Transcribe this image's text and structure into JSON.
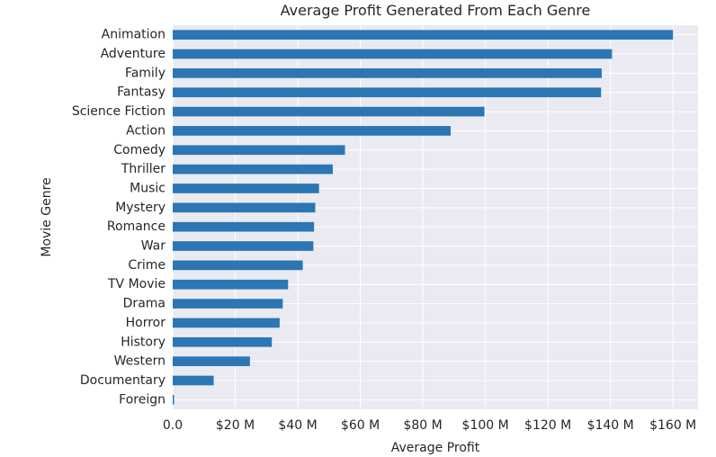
{
  "chart_data": {
    "type": "bar",
    "orientation": "horizontal",
    "title": "Average Profit Generated From Each Genre",
    "xlabel": "Average Profit",
    "ylabel": "Movie Genre",
    "categories": [
      "Animation",
      "Adventure",
      "Family",
      "Fantasy",
      "Science Fiction",
      "Action",
      "Comedy",
      "Thriller",
      "Music",
      "Mystery",
      "Romance",
      "War",
      "Crime",
      "TV Movie",
      "Drama",
      "Horror",
      "History",
      "Western",
      "Documentary",
      "Foreign"
    ],
    "values": [
      160.0,
      140.5,
      137.2,
      137.0,
      99.7,
      88.9,
      55.1,
      51.2,
      46.8,
      45.6,
      45.2,
      45.0,
      41.6,
      36.9,
      35.2,
      34.2,
      31.7,
      24.7,
      13.1,
      0.4
    ],
    "value_unit": "$ millions",
    "xticks": [
      0,
      20,
      40,
      60,
      80,
      100,
      120,
      140,
      160
    ],
    "xtick_labels": [
      "0.0",
      "$20 M",
      "$40 M",
      "$60 M",
      "$80 M",
      "$100 M",
      "$120 M",
      "$140 M",
      "$160 M"
    ],
    "xlim": [
      0,
      168
    ],
    "grid": true,
    "style": "seaborn-darkgrid",
    "colors": {
      "bar": "#2a77b4",
      "background": "#eaeaf2",
      "grid": "#ffffff",
      "text": "#262626"
    }
  }
}
